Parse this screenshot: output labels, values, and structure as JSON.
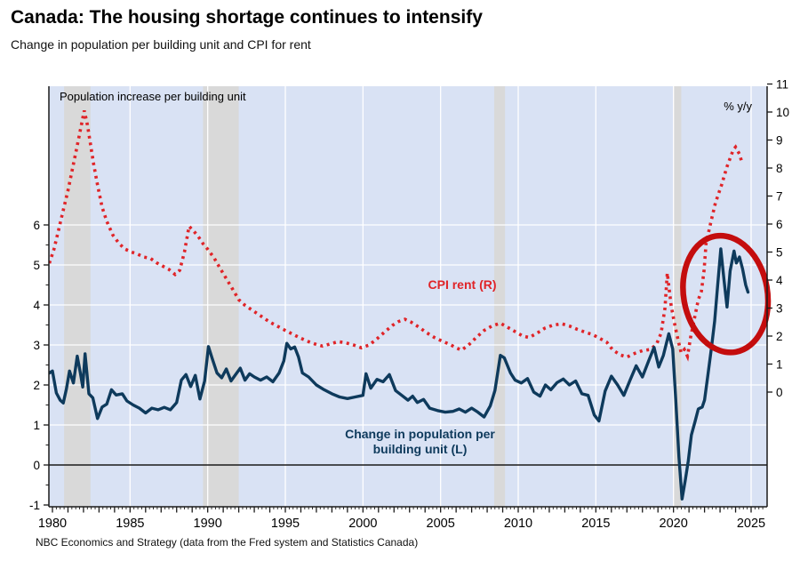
{
  "header": {
    "title": "Canada: The housing shortage continues to intensify",
    "subtitle": "Change in population per building unit and CPI for rent"
  },
  "footer": {
    "source": "NBC Economics and Strategy (data from the Fred system and Statistics Canada)"
  },
  "annotations": {
    "series_note": "Population increase per building unit",
    "units_label": "% y/y",
    "cpi_line_label": "CPI rent (R)",
    "pop_line_label_line1": "Change in population per",
    "pop_line_label_line2": "building unit (L)"
  },
  "colors": {
    "plot_bg": "#d9e2f4",
    "recession_band": "#d9d9d9",
    "gridline": "#ffffff",
    "pop_line": "#0e3a5c",
    "cpi_line": "#e02428",
    "highlight_circle": "#c40d0e",
    "axis": "#1a1a1a"
  },
  "chart_data": {
    "type": "line",
    "title": "Canada: The housing shortage continues to intensify",
    "subtitle": "Change in population per building unit and CPI for rent",
    "unit_note": "% y/y",
    "x_axis": {
      "label_years": [
        1980,
        1985,
        1990,
        1995,
        2000,
        2005,
        2010,
        2015,
        2020,
        2025
      ],
      "grid_years": [
        1985,
        1990,
        1995,
        2000,
        2005,
        2010,
        2015,
        2020,
        2025
      ],
      "range": [
        1979.75,
        2026.0
      ],
      "minor_tick_step_years": 0.25
    },
    "left_axis": {
      "ticks": [
        -1,
        0,
        1,
        2,
        3,
        4,
        5,
        6
      ],
      "range": [
        -1.05,
        9.45
      ],
      "gridline_values": [
        1,
        2,
        3,
        4,
        5,
        6
      ],
      "zero_line": 0
    },
    "right_axis": {
      "ticks": [
        0,
        1,
        2,
        3,
        4,
        5,
        6,
        7,
        8,
        9,
        10,
        11
      ],
      "range": [
        -4.1,
        10.9
      ],
      "unit": "% y/y"
    },
    "recession_bands": [
      [
        1980.75,
        1982.45
      ],
      [
        1989.7,
        1992.0
      ],
      [
        2008.45,
        2009.15
      ],
      [
        2020.0,
        2020.5
      ]
    ],
    "series": [
      {
        "name": "Change in population per building unit (L)",
        "axis": "left",
        "style": "solid",
        "color": "#0e3a5c",
        "points": [
          [
            1979.8,
            2.3
          ],
          [
            1980.0,
            2.35
          ],
          [
            1980.25,
            1.8
          ],
          [
            1980.5,
            1.62
          ],
          [
            1980.7,
            1.55
          ],
          [
            1980.9,
            1.9
          ],
          [
            1981.1,
            2.35
          ],
          [
            1981.35,
            2.05
          ],
          [
            1981.6,
            2.72
          ],
          [
            1981.8,
            2.3
          ],
          [
            1981.95,
            1.95
          ],
          [
            1982.1,
            2.78
          ],
          [
            1982.35,
            1.78
          ],
          [
            1982.6,
            1.68
          ],
          [
            1982.9,
            1.16
          ],
          [
            1983.2,
            1.45
          ],
          [
            1983.5,
            1.52
          ],
          [
            1983.8,
            1.88
          ],
          [
            1984.1,
            1.75
          ],
          [
            1984.5,
            1.78
          ],
          [
            1984.8,
            1.6
          ],
          [
            1985.2,
            1.5
          ],
          [
            1985.6,
            1.42
          ],
          [
            1986.0,
            1.3
          ],
          [
            1986.4,
            1.42
          ],
          [
            1986.8,
            1.38
          ],
          [
            1987.2,
            1.44
          ],
          [
            1987.6,
            1.38
          ],
          [
            1988.0,
            1.56
          ],
          [
            1988.3,
            2.12
          ],
          [
            1988.6,
            2.26
          ],
          [
            1988.9,
            1.96
          ],
          [
            1989.2,
            2.24
          ],
          [
            1989.5,
            1.65
          ],
          [
            1989.8,
            2.1
          ],
          [
            1990.05,
            2.96
          ],
          [
            1990.3,
            2.65
          ],
          [
            1990.6,
            2.3
          ],
          [
            1990.9,
            2.18
          ],
          [
            1991.2,
            2.4
          ],
          [
            1991.5,
            2.1
          ],
          [
            1991.8,
            2.26
          ],
          [
            1992.1,
            2.42
          ],
          [
            1992.4,
            2.12
          ],
          [
            1992.7,
            2.28
          ],
          [
            1993.0,
            2.2
          ],
          [
            1993.4,
            2.12
          ],
          [
            1993.8,
            2.2
          ],
          [
            1994.2,
            2.08
          ],
          [
            1994.6,
            2.3
          ],
          [
            1994.9,
            2.6
          ],
          [
            1995.1,
            3.04
          ],
          [
            1995.35,
            2.9
          ],
          [
            1995.6,
            2.95
          ],
          [
            1995.85,
            2.7
          ],
          [
            1996.1,
            2.3
          ],
          [
            1996.5,
            2.2
          ],
          [
            1997.0,
            2.0
          ],
          [
            1997.5,
            1.88
          ],
          [
            1998.0,
            1.78
          ],
          [
            1998.5,
            1.7
          ],
          [
            1999.0,
            1.66
          ],
          [
            1999.5,
            1.7
          ],
          [
            2000.0,
            1.74
          ],
          [
            2000.2,
            2.28
          ],
          [
            2000.5,
            1.92
          ],
          [
            2000.9,
            2.14
          ],
          [
            2001.3,
            2.08
          ],
          [
            2001.7,
            2.26
          ],
          [
            2002.1,
            1.86
          ],
          [
            2002.5,
            1.74
          ],
          [
            2002.9,
            1.62
          ],
          [
            2003.2,
            1.72
          ],
          [
            2003.5,
            1.56
          ],
          [
            2003.9,
            1.64
          ],
          [
            2004.3,
            1.42
          ],
          [
            2004.8,
            1.36
          ],
          [
            2005.3,
            1.32
          ],
          [
            2005.8,
            1.34
          ],
          [
            2006.2,
            1.4
          ],
          [
            2006.6,
            1.32
          ],
          [
            2007.0,
            1.42
          ],
          [
            2007.4,
            1.32
          ],
          [
            2007.8,
            1.2
          ],
          [
            2008.2,
            1.48
          ],
          [
            2008.5,
            1.86
          ],
          [
            2008.85,
            2.74
          ],
          [
            2009.1,
            2.68
          ],
          [
            2009.5,
            2.3
          ],
          [
            2009.8,
            2.12
          ],
          [
            2010.2,
            2.05
          ],
          [
            2010.6,
            2.16
          ],
          [
            2011.0,
            1.82
          ],
          [
            2011.4,
            1.72
          ],
          [
            2011.75,
            2.0
          ],
          [
            2012.1,
            1.88
          ],
          [
            2012.5,
            2.06
          ],
          [
            2012.9,
            2.15
          ],
          [
            2013.3,
            2.0
          ],
          [
            2013.7,
            2.1
          ],
          [
            2014.1,
            1.78
          ],
          [
            2014.5,
            1.74
          ],
          [
            2014.9,
            1.25
          ],
          [
            2015.2,
            1.1
          ],
          [
            2015.6,
            1.85
          ],
          [
            2016.0,
            2.22
          ],
          [
            2016.4,
            2.0
          ],
          [
            2016.8,
            1.74
          ],
          [
            2017.2,
            2.12
          ],
          [
            2017.6,
            2.48
          ],
          [
            2018.0,
            2.2
          ],
          [
            2018.4,
            2.6
          ],
          [
            2018.75,
            2.94
          ],
          [
            2019.05,
            2.45
          ],
          [
            2019.35,
            2.74
          ],
          [
            2019.7,
            3.28
          ],
          [
            2019.95,
            2.9
          ],
          [
            2020.15,
            1.6
          ],
          [
            2020.35,
            0.2
          ],
          [
            2020.55,
            -0.85
          ],
          [
            2020.75,
            -0.4
          ],
          [
            2020.95,
            0.1
          ],
          [
            2021.15,
            0.75
          ],
          [
            2021.4,
            1.1
          ],
          [
            2021.6,
            1.4
          ],
          [
            2021.85,
            1.45
          ],
          [
            2022.0,
            1.62
          ],
          [
            2022.2,
            2.2
          ],
          [
            2022.45,
            2.95
          ],
          [
            2022.65,
            3.6
          ],
          [
            2022.85,
            4.5
          ],
          [
            2023.05,
            5.4
          ],
          [
            2023.25,
            4.65
          ],
          [
            2023.45,
            3.95
          ],
          [
            2023.65,
            4.85
          ],
          [
            2023.9,
            5.35
          ],
          [
            2024.05,
            5.05
          ],
          [
            2024.25,
            5.2
          ],
          [
            2024.45,
            4.9
          ],
          [
            2024.65,
            4.5
          ],
          [
            2024.8,
            4.32
          ]
        ]
      },
      {
        "name": "CPI rent (R)",
        "axis": "right",
        "style": "dotted",
        "color": "#e02428",
        "points": [
          [
            1979.8,
            4.6
          ],
          [
            1980.1,
            5.1
          ],
          [
            1980.4,
            5.8
          ],
          [
            1980.7,
            6.5
          ],
          [
            1981.0,
            7.2
          ],
          [
            1981.3,
            8.0
          ],
          [
            1981.6,
            8.8
          ],
          [
            1981.85,
            9.5
          ],
          [
            1982.05,
            10.05
          ],
          [
            1982.25,
            9.55
          ],
          [
            1982.45,
            8.85
          ],
          [
            1982.65,
            8.15
          ],
          [
            1982.9,
            7.4
          ],
          [
            1983.2,
            6.6
          ],
          [
            1983.5,
            6.1
          ],
          [
            1983.9,
            5.6
          ],
          [
            1984.3,
            5.3
          ],
          [
            1984.7,
            5.1
          ],
          [
            1985.1,
            5.0
          ],
          [
            1985.5,
            4.92
          ],
          [
            1985.9,
            4.82
          ],
          [
            1986.3,
            4.78
          ],
          [
            1986.7,
            4.62
          ],
          [
            1987.1,
            4.5
          ],
          [
            1987.5,
            4.38
          ],
          [
            1987.9,
            4.2
          ],
          [
            1988.2,
            4.35
          ],
          [
            1988.5,
            5.0
          ],
          [
            1988.8,
            5.92
          ],
          [
            1989.1,
            5.75
          ],
          [
            1989.4,
            5.55
          ],
          [
            1989.7,
            5.3
          ],
          [
            1990.0,
            5.1
          ],
          [
            1990.4,
            4.8
          ],
          [
            1990.8,
            4.42
          ],
          [
            1991.2,
            4.05
          ],
          [
            1991.6,
            3.68
          ],
          [
            1992.0,
            3.3
          ],
          [
            1992.4,
            3.1
          ],
          [
            1992.8,
            2.95
          ],
          [
            1993.2,
            2.8
          ],
          [
            1993.6,
            2.65
          ],
          [
            1994.0,
            2.5
          ],
          [
            1994.5,
            2.35
          ],
          [
            1995.0,
            2.2
          ],
          [
            1995.5,
            2.06
          ],
          [
            1996.0,
            1.92
          ],
          [
            1996.5,
            1.8
          ],
          [
            1997.0,
            1.7
          ],
          [
            1997.4,
            1.64
          ],
          [
            1997.9,
            1.72
          ],
          [
            1998.4,
            1.8
          ],
          [
            1998.9,
            1.76
          ],
          [
            1999.4,
            1.68
          ],
          [
            1999.9,
            1.58
          ],
          [
            2000.4,
            1.68
          ],
          [
            2000.9,
            1.9
          ],
          [
            2001.4,
            2.15
          ],
          [
            2001.9,
            2.38
          ],
          [
            2002.3,
            2.52
          ],
          [
            2002.7,
            2.6
          ],
          [
            2003.1,
            2.5
          ],
          [
            2003.6,
            2.32
          ],
          [
            2004.1,
            2.12
          ],
          [
            2004.6,
            1.95
          ],
          [
            2005.1,
            1.82
          ],
          [
            2005.6,
            1.7
          ],
          [
            2006.0,
            1.58
          ],
          [
            2006.35,
            1.5
          ],
          [
            2006.8,
            1.68
          ],
          [
            2007.3,
            1.95
          ],
          [
            2007.8,
            2.2
          ],
          [
            2008.3,
            2.36
          ],
          [
            2008.85,
            2.46
          ],
          [
            2009.3,
            2.32
          ],
          [
            2009.8,
            2.16
          ],
          [
            2010.3,
            2.0
          ],
          [
            2010.7,
            1.95
          ],
          [
            2011.2,
            2.1
          ],
          [
            2011.7,
            2.28
          ],
          [
            2012.2,
            2.38
          ],
          [
            2012.8,
            2.44
          ],
          [
            2013.3,
            2.36
          ],
          [
            2013.8,
            2.24
          ],
          [
            2014.3,
            2.14
          ],
          [
            2014.8,
            2.05
          ],
          [
            2015.3,
            1.9
          ],
          [
            2015.7,
            1.78
          ],
          [
            2016.1,
            1.5
          ],
          [
            2016.6,
            1.32
          ],
          [
            2017.0,
            1.25
          ],
          [
            2017.5,
            1.38
          ],
          [
            2018.0,
            1.48
          ],
          [
            2018.5,
            1.52
          ],
          [
            2018.9,
            1.7
          ],
          [
            2019.2,
            2.1
          ],
          [
            2019.45,
            3.0
          ],
          [
            2019.6,
            4.25
          ],
          [
            2019.85,
            3.1
          ],
          [
            2020.05,
            2.5
          ],
          [
            2020.3,
            1.85
          ],
          [
            2020.5,
            1.4
          ],
          [
            2020.7,
            1.52
          ],
          [
            2020.9,
            1.28
          ],
          [
            2021.1,
            1.95
          ],
          [
            2021.3,
            2.5
          ],
          [
            2021.6,
            3.3
          ],
          [
            2021.8,
            3.6
          ],
          [
            2021.97,
            4.35
          ],
          [
            2022.1,
            5.3
          ],
          [
            2022.4,
            6.05
          ],
          [
            2022.7,
            6.75
          ],
          [
            2023.1,
            7.4
          ],
          [
            2023.45,
            8.05
          ],
          [
            2023.85,
            8.65
          ],
          [
            2024.0,
            8.75
          ],
          [
            2024.25,
            8.5
          ],
          [
            2024.4,
            8.22
          ]
        ]
      }
    ],
    "highlight_circle": {
      "center_year": 2023.35,
      "center_value_right": 3.5,
      "radius_years": 2.7,
      "radius_values_right": 2.1,
      "rotation_deg": -10,
      "color": "#c40d0e"
    },
    "legend_position": "labels-in-plot",
    "grid": true
  }
}
